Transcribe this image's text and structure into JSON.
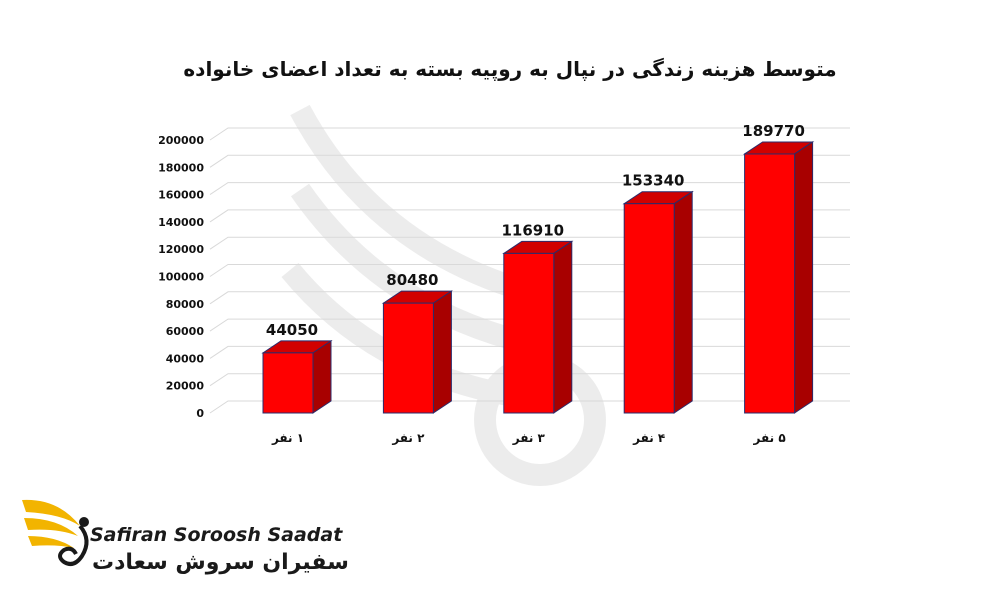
{
  "chart_data": {
    "type": "bar",
    "title": "متوسط هزینه زندگی در  نپال به روپیه بسته به تعداد اعضای خانواده",
    "categories": [
      "۱ نفر",
      "۲ نفر",
      "۳ نفر",
      "۴ نفر",
      "۵ نفر"
    ],
    "values": [
      44050,
      80480,
      116910,
      153340,
      189770
    ],
    "data_labels": [
      "44050",
      "80480",
      "116910",
      "153340",
      "189770"
    ],
    "yticks": [
      0,
      20000,
      40000,
      60000,
      80000,
      100000,
      120000,
      140000,
      160000,
      180000,
      200000
    ],
    "ylim": [
      0,
      200000
    ],
    "grid": true,
    "legend": "none",
    "style": "3d-column",
    "colors": {
      "front": "#ff0000",
      "side": "#a80000",
      "top": "#d10000",
      "edge": "#2b2b6b",
      "grid": "#d9d9d9"
    }
  },
  "logo": {
    "text_en": "Safiran Soroosh Saadat",
    "text_fa": "سفیران سروش سعادت",
    "accent": "#f2b400"
  }
}
